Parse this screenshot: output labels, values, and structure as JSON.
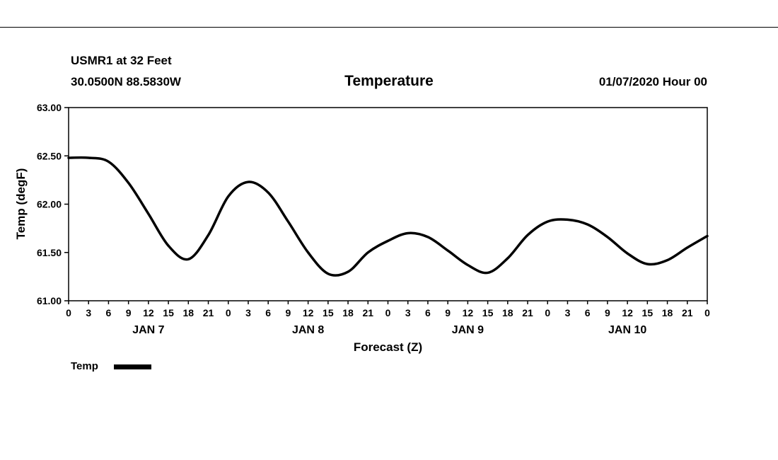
{
  "header": {
    "station_line1": "USMR1 at 32 Feet",
    "station_line2": "30.0500N 88.5830W",
    "title": "Temperature",
    "run_date": "01/07/2020 Hour 00"
  },
  "axes": {
    "ylabel": "Temp (degF)",
    "xlabel": "Forecast (Z)"
  },
  "legend": {
    "label": "Temp",
    "line_color": "#000000"
  },
  "chart_data": {
    "type": "line",
    "title": "Temperature",
    "xlabel": "Forecast (Z)",
    "ylabel": "Temp (degF)",
    "xlim": [
      0,
      96
    ],
    "ylim": [
      61.0,
      63.0
    ],
    "grid": false,
    "legend_position": "bottom-left",
    "y_ticks": [
      61.0,
      61.5,
      62.0,
      62.5,
      63.0
    ],
    "y_tick_labels": [
      "61.00",
      "61.50",
      "62.00",
      "62.50",
      "63.00"
    ],
    "x_tick_hours": [
      0,
      3,
      6,
      9,
      12,
      15,
      18,
      21,
      24,
      27,
      30,
      33,
      36,
      39,
      42,
      45,
      48,
      51,
      54,
      57,
      60,
      63,
      66,
      69,
      72,
      75,
      78,
      81,
      84,
      87,
      90,
      93,
      96
    ],
    "x_tick_labels": [
      "0",
      "3",
      "6",
      "9",
      "12",
      "15",
      "18",
      "21",
      "0",
      "3",
      "6",
      "9",
      "12",
      "15",
      "18",
      "21",
      "0",
      "3",
      "6",
      "9",
      "12",
      "15",
      "18",
      "21",
      "0",
      "3",
      "6",
      "9",
      "12",
      "15",
      "18",
      "21",
      "0"
    ],
    "day_labels": [
      {
        "label": "JAN 7",
        "hour": 12
      },
      {
        "label": "JAN 8",
        "hour": 36
      },
      {
        "label": "JAN 9",
        "hour": 60
      },
      {
        "label": "JAN 10",
        "hour": 84
      }
    ],
    "series": [
      {
        "name": "Temp",
        "color": "#000000",
        "x": [
          0,
          3,
          6,
          9,
          12,
          15,
          18,
          21,
          24,
          27,
          30,
          33,
          36,
          39,
          42,
          45,
          48,
          51,
          54,
          57,
          60,
          63,
          66,
          69,
          72,
          75,
          78,
          81,
          84,
          87,
          90,
          93,
          96
        ],
        "values": [
          62.48,
          62.48,
          62.44,
          62.22,
          61.9,
          61.57,
          61.43,
          61.68,
          62.08,
          62.23,
          62.12,
          61.82,
          61.5,
          61.28,
          61.3,
          61.5,
          61.62,
          61.7,
          61.66,
          61.52,
          61.37,
          61.29,
          61.44,
          61.68,
          61.82,
          61.84,
          61.79,
          61.66,
          61.49,
          61.38,
          61.42,
          61.55,
          61.67
        ]
      }
    ]
  }
}
